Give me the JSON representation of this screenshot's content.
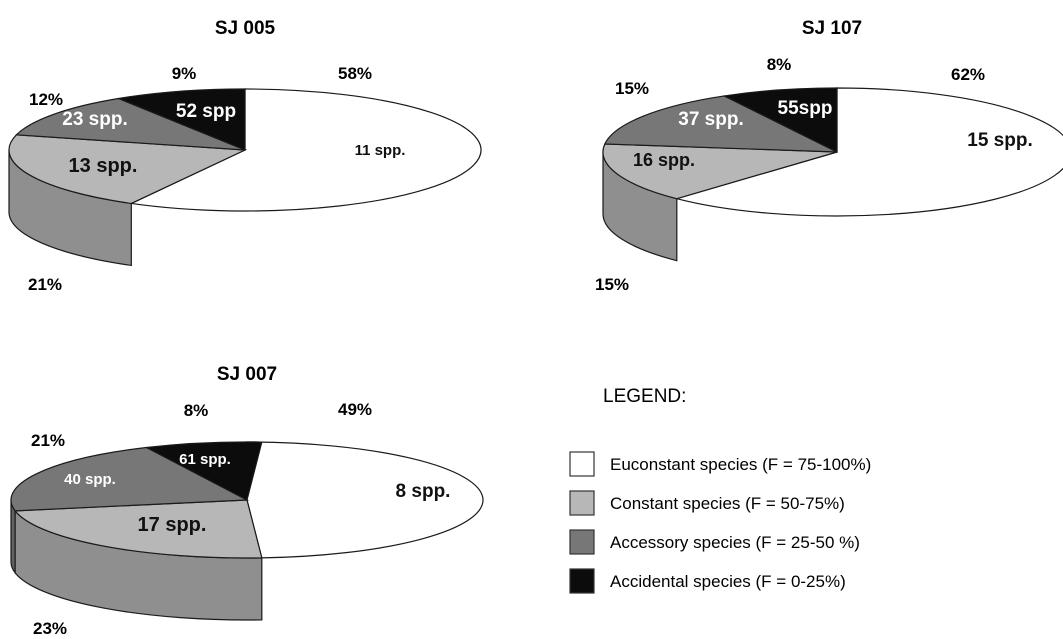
{
  "colors": {
    "euconstant": "#ffffff",
    "constant": "#b7b7b7",
    "accessory": "#777777",
    "accidental": "#0c0c0c",
    "outline": "#1a1a1a"
  },
  "chart_data": [
    {
      "type": "pie",
      "title": "SJ 005",
      "style": "3d",
      "slices": [
        {
          "category": "Euconstant species",
          "percent": 58,
          "spp_label": "11 spp."
        },
        {
          "category": "Constant species",
          "percent": 21,
          "spp_label": "13 spp."
        },
        {
          "category": "Accessory species",
          "percent": 12,
          "spp_label": "23 spp."
        },
        {
          "category": "Accidental species",
          "percent": 9,
          "spp_label": "52 spp"
        }
      ],
      "percent_labels": [
        "58%",
        "21%",
        "12%",
        "9%"
      ]
    },
    {
      "type": "pie",
      "title": "SJ 107",
      "style": "3d",
      "slices": [
        {
          "category": "Euconstant species",
          "percent": 62,
          "spp_label": "15 spp."
        },
        {
          "category": "Constant species",
          "percent": 15,
          "spp_label": "16 spp."
        },
        {
          "category": "Accessory species",
          "percent": 15,
          "spp_label": "37 spp."
        },
        {
          "category": "Accidental species",
          "percent": 8,
          "spp_label": "55spp"
        }
      ],
      "percent_labels": [
        "62%",
        "15%",
        "15%",
        "8%"
      ]
    },
    {
      "type": "pie",
      "title": "SJ 007",
      "style": "3d",
      "slices": [
        {
          "category": "Euconstant species",
          "percent": 49,
          "spp_label": "8 spp."
        },
        {
          "category": "Constant species",
          "percent": 23,
          "spp_label": "17 spp."
        },
        {
          "category": "Accessory species",
          "percent": 21,
          "spp_label": "40 spp."
        },
        {
          "category": "Accidental species",
          "percent": 8,
          "spp_label": "61 spp."
        }
      ],
      "percent_labels": [
        "49%",
        "23%",
        "21%",
        "8%"
      ]
    }
  ],
  "legend": {
    "title": "LEGEND:",
    "items": [
      {
        "label": "Euconstant species (F = 75-100%)",
        "color": "#ffffff"
      },
      {
        "label": "Constant species (F = 50-75%)",
        "color": "#b7b7b7"
      },
      {
        "label": "Accessory species (F = 25-50 %)",
        "color": "#777777"
      },
      {
        "label": "Accidental species (F = 0-25%)",
        "color": "#0c0c0c"
      }
    ]
  }
}
